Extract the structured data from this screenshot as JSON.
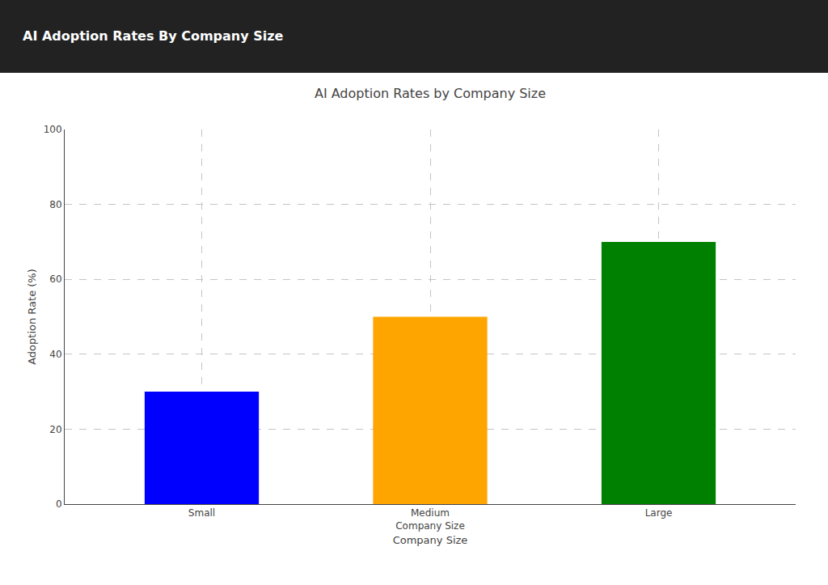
{
  "chart_data": {
    "type": "bar",
    "title": "AI Adoption Rates by Company Size",
    "subtitle": "AI Adoption Rates By Company Size",
    "xlabel": "Company Size",
    "ylabel": "Adoption Rate (%)",
    "categories": [
      "Small",
      "Medium\nCompany Size",
      "Large"
    ],
    "values": [
      30,
      50,
      70
    ],
    "colors": [
      "#0000FF",
      "#FFA500",
      "#008000"
    ],
    "ylim": [
      0,
      100
    ],
    "yticks": [
      0,
      20,
      40,
      60,
      80,
      100
    ],
    "grid": true
  }
}
